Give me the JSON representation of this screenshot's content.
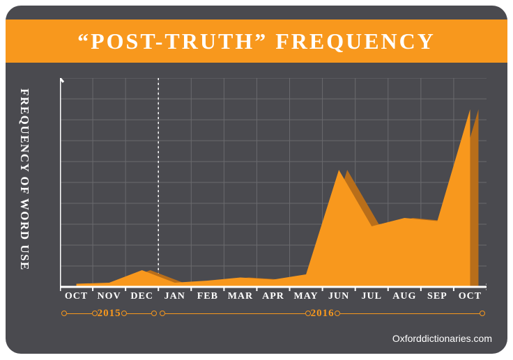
{
  "header": {
    "title": "“POST-TRUTH” FREQUENCY"
  },
  "chart": {
    "type": "area",
    "ylabel": "FREQUENCY OF WORD USE",
    "categories": [
      "OCT",
      "NOV",
      "DEC",
      "JAN",
      "FEB",
      "MAR",
      "APR",
      "MAY",
      "JUN",
      "JUL",
      "AUG",
      "SEP",
      "OCT"
    ],
    "values": [
      0.15,
      0.2,
      0.8,
      0.2,
      0.3,
      0.45,
      0.35,
      0.6,
      5.6,
      2.9,
      3.3,
      3.15,
      8.5
    ],
    "ylim": [
      0,
      10
    ],
    "y_gridlines": 10,
    "colors": {
      "area_fill": "#f8981d",
      "area_shadow": "#b86e1a",
      "axis": "#ffffff",
      "grid": "#6a6a6e",
      "background": "#4a4a4f",
      "title_band": "#f8981d",
      "text": "#ffffff",
      "year_accent": "#f8981d"
    },
    "divider_after_index": 2,
    "year_groups": [
      {
        "label": "2015",
        "start_index": 0,
        "end_index": 2
      },
      {
        "label": "2016",
        "start_index": 3,
        "end_index": 12
      }
    ],
    "title_fontsize": 32,
    "label_fontsize": 17,
    "tick_fontsize": 14
  },
  "footer": {
    "text": "Oxforddictionaries.com"
  }
}
